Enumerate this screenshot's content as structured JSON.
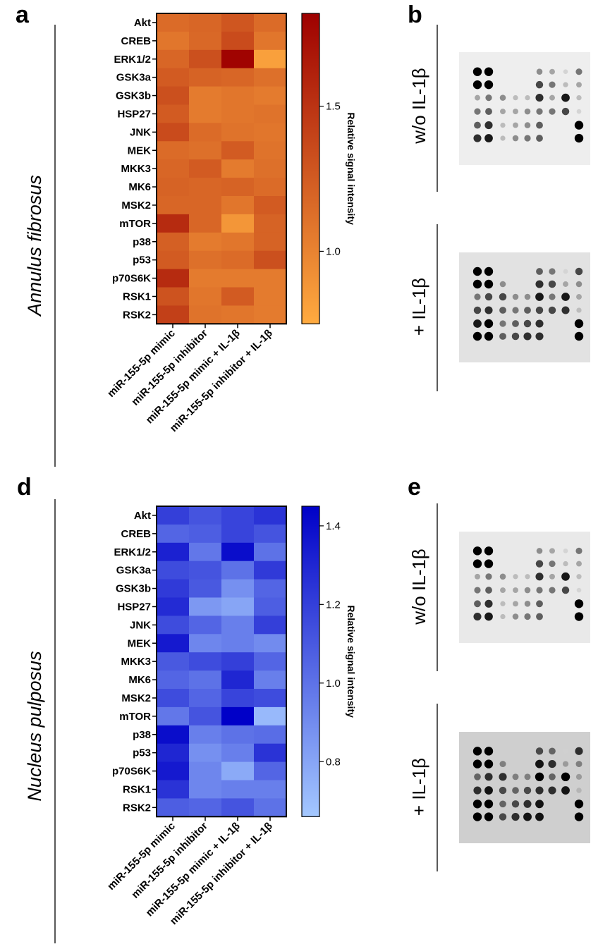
{
  "panels": {
    "a": "a",
    "b": "b",
    "d": "d",
    "e": "e"
  },
  "colors": {
    "orange_low": "#ffab40",
    "orange_high": "#9e0000",
    "blue_low": "#a4c8ff",
    "blue_high": "#0000c8"
  },
  "chart_data": [
    {
      "type": "heatmap",
      "side_title": "Annulus fibrosus",
      "colorbar_label": "Relative signal intensity",
      "colorbar_range": [
        0.75,
        1.82
      ],
      "colorbar_ticks": [
        {
          "value": 1.0,
          "label": "1.0"
        },
        {
          "value": 1.5,
          "label": "1.5"
        }
      ],
      "rows": [
        "Akt",
        "CREB",
        "ERK1/2",
        "GSK3a",
        "GSK3b",
        "HSP27",
        "JNK",
        "MEK",
        "MKK3",
        "MK6",
        "MSK2",
        "mTOR",
        "p38",
        "p53",
        "p70S6K",
        "RSK1",
        "RSK2"
      ],
      "columns": [
        "miR-155-5p mimic",
        "miR-155-5p inhibitor",
        "miR-155-5p mimic + IL-1β",
        "miR-155-5p inhibitor + IL-1β"
      ],
      "values": [
        [
          1.15,
          1.18,
          1.28,
          1.15
        ],
        [
          1.08,
          1.17,
          1.35,
          1.08
        ],
        [
          1.18,
          1.32,
          1.8,
          0.82
        ],
        [
          1.25,
          1.2,
          1.18,
          1.12
        ],
        [
          1.32,
          1.05,
          1.08,
          1.05
        ],
        [
          1.25,
          1.05,
          1.08,
          1.1
        ],
        [
          1.35,
          1.15,
          1.1,
          1.08
        ],
        [
          1.15,
          1.12,
          1.25,
          1.1
        ],
        [
          1.18,
          1.25,
          1.05,
          1.12
        ],
        [
          1.2,
          1.18,
          1.2,
          1.15
        ],
        [
          1.18,
          1.18,
          1.08,
          1.25
        ],
        [
          1.55,
          1.18,
          0.88,
          1.2
        ],
        [
          1.22,
          1.05,
          1.08,
          1.2
        ],
        [
          1.25,
          1.12,
          1.15,
          1.32
        ],
        [
          1.55,
          1.05,
          1.05,
          1.05
        ],
        [
          1.3,
          1.08,
          1.25,
          1.05
        ],
        [
          1.42,
          1.1,
          1.08,
          1.05
        ]
      ]
    },
    {
      "type": "heatmap",
      "side_title": "Nucleus pulposus",
      "colorbar_label": "Relative signal intensity",
      "colorbar_range": [
        0.66,
        1.45
      ],
      "colorbar_ticks": [
        {
          "value": 0.8,
          "label": "0.8"
        },
        {
          "value": 1.0,
          "label": "1.0"
        },
        {
          "value": 1.2,
          "label": "1.2"
        },
        {
          "value": 1.4,
          "label": "1.4"
        }
      ],
      "rows": [
        "Akt",
        "CREB",
        "ERK1/2",
        "GSK3a",
        "GSK3b",
        "HSP27",
        "JNK",
        "MEK",
        "MKK3",
        "MK6",
        "MSK2",
        "mTOR",
        "p38",
        "p53",
        "p70S6K",
        "RSK1",
        "RSK2"
      ],
      "columns": [
        "miR-155-5p mimic",
        "miR-155-5p inhibitor",
        "miR-155-5p mimic + IL-1β",
        "miR-155-5p inhibitor + IL-1β"
      ],
      "values": [
        [
          1.2,
          1.12,
          1.18,
          1.25
        ],
        [
          1.05,
          1.08,
          1.18,
          1.12
        ],
        [
          1.32,
          0.98,
          1.4,
          1.0
        ],
        [
          1.15,
          1.12,
          1.0,
          1.22
        ],
        [
          1.22,
          1.1,
          0.88,
          1.05
        ],
        [
          1.28,
          0.85,
          0.8,
          1.08
        ],
        [
          1.15,
          1.05,
          0.95,
          1.2
        ],
        [
          1.35,
          0.92,
          0.95,
          0.9
        ],
        [
          1.1,
          1.15,
          1.2,
          1.05
        ],
        [
          1.05,
          1.0,
          1.3,
          0.95
        ],
        [
          1.15,
          1.05,
          1.18,
          1.15
        ],
        [
          0.98,
          1.12,
          1.45,
          0.72
        ],
        [
          1.4,
          0.95,
          1.0,
          1.02
        ],
        [
          1.3,
          0.88,
          0.95,
          1.25
        ],
        [
          1.35,
          0.92,
          0.78,
          1.05
        ],
        [
          1.25,
          0.92,
          0.95,
          0.95
        ],
        [
          1.08,
          1.05,
          1.12,
          1.0
        ]
      ]
    }
  ],
  "blots": [
    {
      "label": "w/o IL-1β",
      "panel": "b",
      "background": "#eeeeee"
    },
    {
      "label": "+ IL-1β",
      "panel": "b",
      "background": "#e2e2e2"
    },
    {
      "label": "w/o IL-1β",
      "panel": "e",
      "background": "#e9e9e9"
    },
    {
      "label": "+ IL-1β",
      "panel": "e",
      "background": "#cfcfcf"
    }
  ],
  "dot_patterns": {
    "without_il1b": [
      [
        1.0,
        1.0,
        0,
        0,
        0,
        0.4,
        0.3,
        0.1,
        0.5
      ],
      [
        1.0,
        1.0,
        0,
        0,
        0,
        0.7,
        0.5,
        0.2,
        0.3
      ],
      [
        0.3,
        0.5,
        0.4,
        0.2,
        0.2,
        0.8,
        0.3,
        0.9,
        0.2
      ],
      [
        0.5,
        0.6,
        0.3,
        0.3,
        0.4,
        0.5,
        0.5,
        0.7,
        0.1
      ],
      [
        0.6,
        0.8,
        0.2,
        0.3,
        0.4,
        0.6,
        0,
        0,
        1.0
      ],
      [
        0.8,
        0.9,
        0.2,
        0.4,
        0.5,
        0.6,
        0,
        0,
        1.0
      ]
    ],
    "with_il1b": [
      [
        1.0,
        1.0,
        0,
        0,
        0,
        0.6,
        0.5,
        0.1,
        0.7
      ],
      [
        1.0,
        1.0,
        0.4,
        0,
        0,
        0.8,
        0.7,
        0.3,
        0.4
      ],
      [
        0.5,
        0.7,
        0.7,
        0.4,
        0.4,
        0.9,
        0.5,
        0.9,
        0.3
      ],
      [
        0.7,
        0.8,
        0.6,
        0.5,
        0.6,
        0.7,
        0.7,
        0.8,
        0.2
      ],
      [
        0.9,
        1.0,
        0.5,
        0.6,
        0.7,
        0.8,
        0,
        0,
        1.0
      ],
      [
        1.0,
        1.0,
        0.6,
        0.7,
        0.8,
        0.8,
        0,
        0,
        1.0
      ]
    ]
  }
}
